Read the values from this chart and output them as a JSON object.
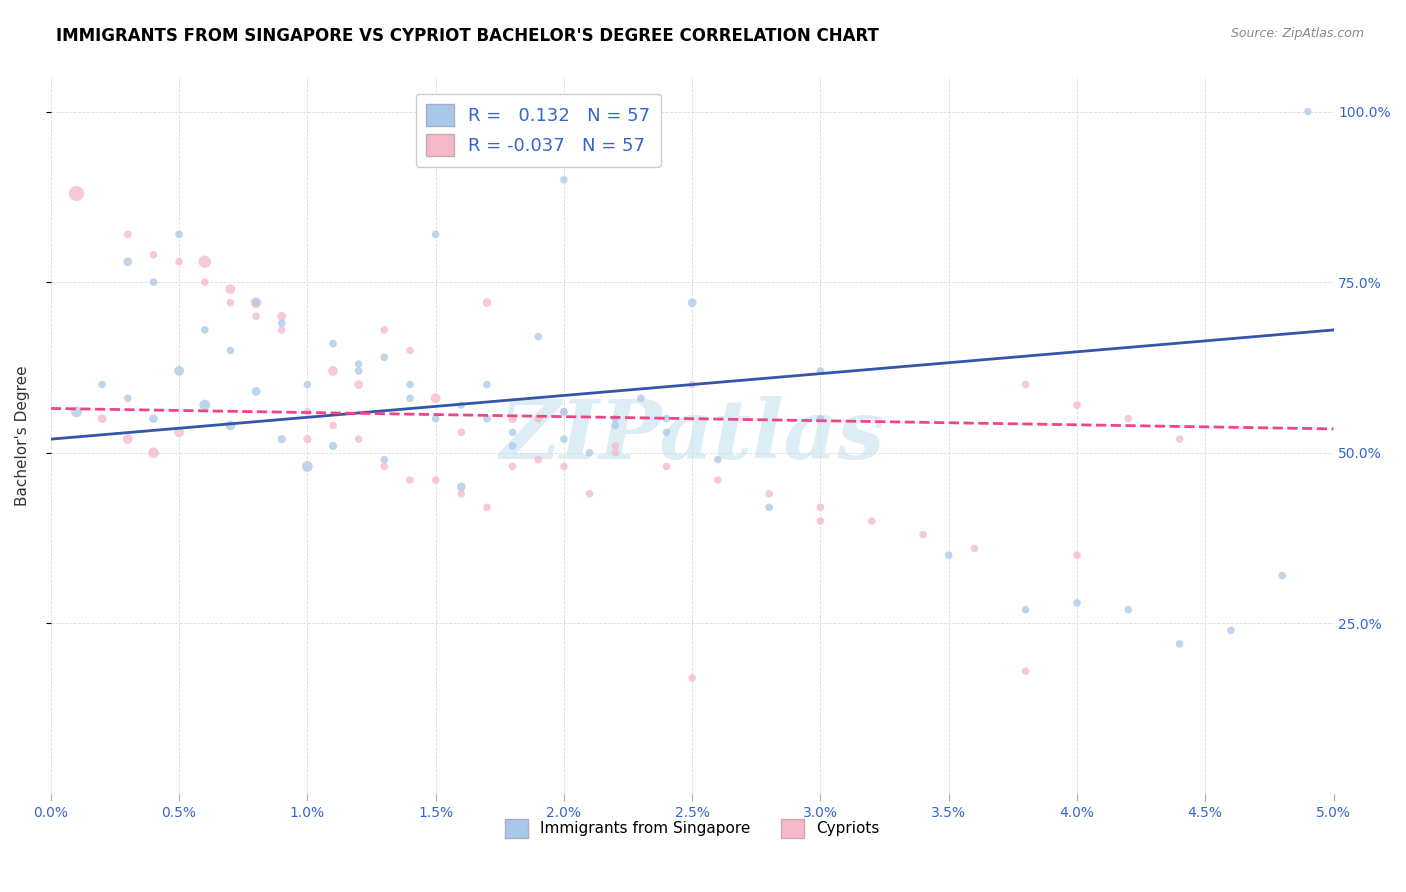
{
  "title": "IMMIGRANTS FROM SINGAPORE VS CYPRIOT BACHELOR'S DEGREE CORRELATION CHART",
  "source": "Source: ZipAtlas.com",
  "ylabel": "Bachelor's Degree",
  "legend1_label": "Immigrants from Singapore",
  "legend2_label": "Cypriots",
  "r1": 0.132,
  "r2": -0.037,
  "n": 57,
  "blue_color": "#a8c8e8",
  "pink_color": "#f4b8c8",
  "blue_line_color": "#3355aa",
  "pink_line_color": "#ee4488",
  "blue_scatter_x": [
    0.001,
    0.002,
    0.003,
    0.004,
    0.005,
    0.006,
    0.007,
    0.008,
    0.009,
    0.01,
    0.011,
    0.012,
    0.013,
    0.014,
    0.015,
    0.016,
    0.017,
    0.018,
    0.019,
    0.02,
    0.021,
    0.022,
    0.023,
    0.024,
    0.025,
    0.003,
    0.004,
    0.005,
    0.006,
    0.007,
    0.008,
    0.009,
    0.01,
    0.011,
    0.012,
    0.013,
    0.014,
    0.015,
    0.016,
    0.017,
    0.018,
    0.02,
    0.022,
    0.024,
    0.026,
    0.028,
    0.03,
    0.035,
    0.038,
    0.04,
    0.042,
    0.044,
    0.046,
    0.048,
    0.02,
    0.03,
    0.049
  ],
  "blue_scatter_y": [
    0.56,
    0.6,
    0.58,
    0.55,
    0.62,
    0.57,
    0.54,
    0.59,
    0.52,
    0.48,
    0.51,
    0.63,
    0.49,
    0.58,
    0.55,
    0.45,
    0.6,
    0.53,
    0.67,
    0.56,
    0.5,
    0.55,
    0.58,
    0.53,
    0.72,
    0.78,
    0.75,
    0.82,
    0.68,
    0.65,
    0.72,
    0.69,
    0.6,
    0.66,
    0.62,
    0.64,
    0.6,
    0.82,
    0.57,
    0.55,
    0.51,
    0.52,
    0.54,
    0.55,
    0.49,
    0.42,
    0.55,
    0.35,
    0.27,
    0.28,
    0.27,
    0.22,
    0.24,
    0.32,
    0.9,
    0.62,
    1.0
  ],
  "blue_scatter_s": [
    60,
    30,
    30,
    40,
    50,
    60,
    50,
    40,
    35,
    60,
    35,
    30,
    30,
    30,
    30,
    40,
    30,
    30,
    30,
    30,
    30,
    30,
    30,
    30,
    40,
    40,
    30,
    30,
    30,
    30,
    30,
    30,
    30,
    30,
    30,
    30,
    30,
    30,
    30,
    30,
    30,
    30,
    30,
    30,
    30,
    30,
    30,
    30,
    30,
    30,
    30,
    30,
    30,
    30,
    30,
    30,
    30
  ],
  "pink_scatter_x": [
    0.001,
    0.002,
    0.003,
    0.004,
    0.005,
    0.006,
    0.007,
    0.008,
    0.009,
    0.01,
    0.011,
    0.012,
    0.013,
    0.014,
    0.015,
    0.016,
    0.017,
    0.018,
    0.019,
    0.02,
    0.021,
    0.022,
    0.003,
    0.004,
    0.005,
    0.006,
    0.007,
    0.008,
    0.009,
    0.01,
    0.011,
    0.012,
    0.013,
    0.014,
    0.015,
    0.016,
    0.017,
    0.018,
    0.019,
    0.02,
    0.022,
    0.024,
    0.026,
    0.028,
    0.03,
    0.032,
    0.034,
    0.036,
    0.038,
    0.04,
    0.042,
    0.044,
    0.03,
    0.04,
    0.038,
    0.025,
    0.025
  ],
  "pink_scatter_y": [
    0.88,
    0.55,
    0.52,
    0.5,
    0.53,
    0.78,
    0.74,
    0.72,
    0.7,
    0.52,
    0.62,
    0.6,
    0.68,
    0.65,
    0.58,
    0.53,
    0.72,
    0.55,
    0.49,
    0.48,
    0.44,
    0.51,
    0.82,
    0.79,
    0.78,
    0.75,
    0.72,
    0.7,
    0.68,
    0.56,
    0.54,
    0.52,
    0.48,
    0.46,
    0.46,
    0.44,
    0.42,
    0.48,
    0.55,
    0.56,
    0.5,
    0.48,
    0.46,
    0.44,
    0.42,
    0.4,
    0.38,
    0.36,
    0.6,
    0.57,
    0.55,
    0.52,
    0.4,
    0.35,
    0.18,
    0.17,
    0.6
  ],
  "pink_scatter_s": [
    120,
    40,
    50,
    60,
    50,
    80,
    50,
    60,
    40,
    35,
    50,
    40,
    30,
    30,
    50,
    30,
    40,
    40,
    30,
    30,
    30,
    30,
    30,
    30,
    30,
    30,
    30,
    30,
    30,
    30,
    30,
    30,
    30,
    30,
    30,
    30,
    30,
    30,
    30,
    30,
    30,
    30,
    30,
    30,
    30,
    30,
    30,
    30,
    30,
    30,
    30,
    30,
    30,
    30,
    30,
    30,
    30
  ],
  "xmin": 0.0,
  "xmax": 0.05,
  "ymin": 0.0,
  "ymax": 1.05,
  "blue_line_x0": 0.0,
  "blue_line_x1": 0.05,
  "blue_line_y0": 0.52,
  "blue_line_y1": 0.68,
  "pink_line_x0": 0.0,
  "pink_line_x1": 0.05,
  "pink_line_y0": 0.565,
  "pink_line_y1": 0.535,
  "watermark_text": "ZIPatlas",
  "watermark_color": "#bbddee",
  "watermark_alpha": 0.5
}
